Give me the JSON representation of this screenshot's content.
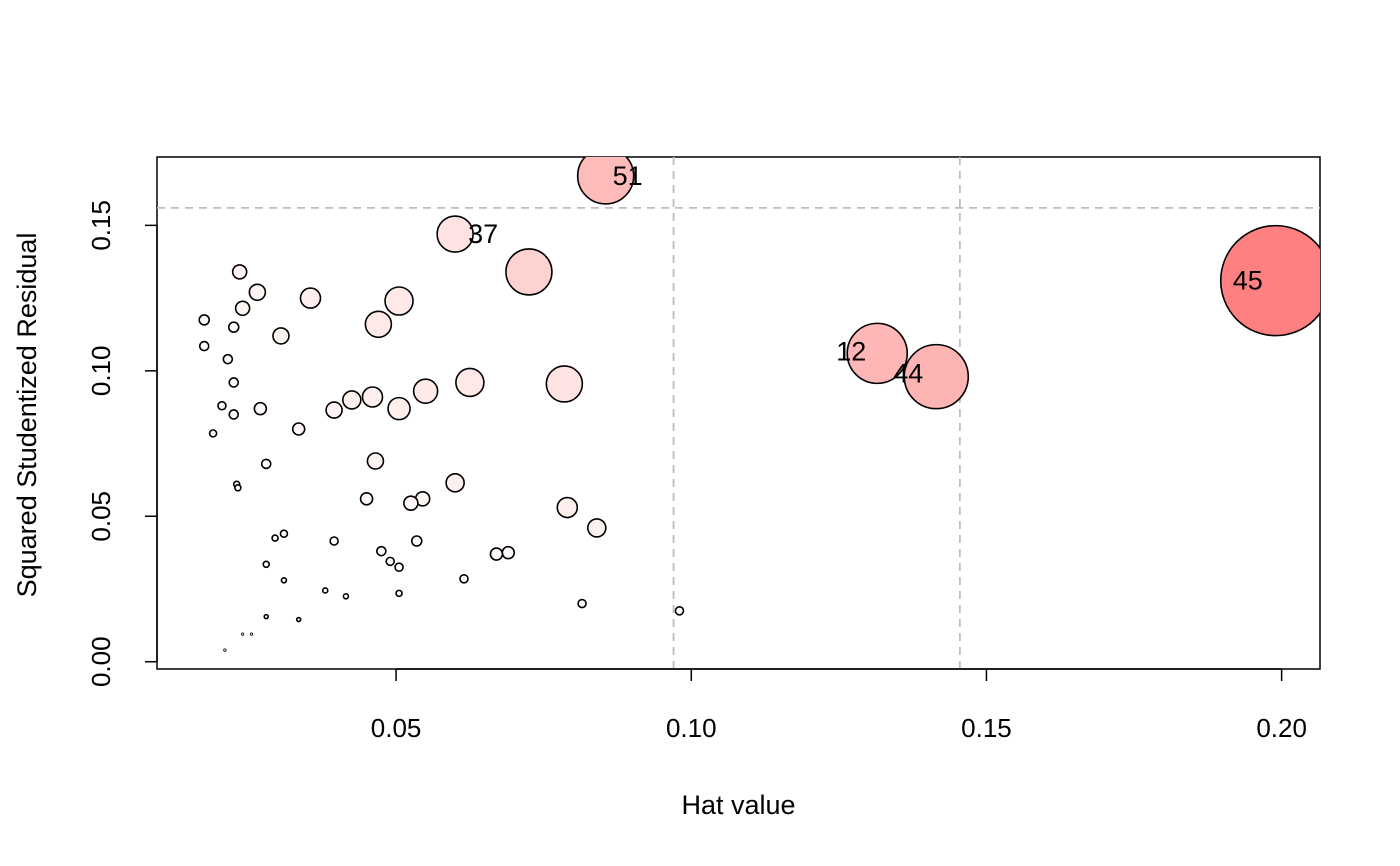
{
  "chart_data": {
    "type": "scatter",
    "title": "",
    "xlabel": "Hat value",
    "ylabel": "Squared Studentized Residual",
    "xlim": [
      0.0095,
      0.2065
    ],
    "ylim": [
      -0.0025,
      0.1735
    ],
    "x_ticks": [
      0.05,
      0.1,
      0.15,
      0.2
    ],
    "x_tick_labels": [
      "0.05",
      "0.10",
      "0.15",
      "0.20"
    ],
    "y_ticks": [
      0.0,
      0.05,
      0.1,
      0.15
    ],
    "y_tick_labels": [
      "0.00",
      "0.05",
      "0.10",
      "0.15"
    ],
    "reference_lines": {
      "x": [
        0.097,
        0.1455
      ],
      "y": 0.156
    },
    "grid": false,
    "legend": "none",
    "point_stroke": "#000000",
    "size_encoding": "bubble area proportional to influence; fill from white to #FF8080",
    "points": [
      {
        "x": 0.0855,
        "y": 0.167,
        "r": 28,
        "fill": "#FFBABA",
        "label": "51"
      },
      {
        "x": 0.06,
        "y": 0.147,
        "r": 18,
        "fill": "#FFE2E2",
        "label": "37"
      },
      {
        "x": 0.199,
        "y": 0.131,
        "r": 55,
        "fill": "#FF8080",
        "label": "45"
      },
      {
        "x": 0.1315,
        "y": 0.106,
        "r": 30,
        "fill": "#FFB6B6",
        "label": "12"
      },
      {
        "x": 0.1415,
        "y": 0.098,
        "r": 32,
        "fill": "#FFB4B4",
        "label": "44"
      },
      {
        "x": 0.0725,
        "y": 0.134,
        "r": 23,
        "fill": "#FFD2D2"
      },
      {
        "x": 0.0785,
        "y": 0.0955,
        "r": 18,
        "fill": "#FFE2E2"
      },
      {
        "x": 0.0625,
        "y": 0.096,
        "r": 14,
        "fill": "#FFE8E8"
      },
      {
        "x": 0.0505,
        "y": 0.124,
        "r": 14,
        "fill": "#FFE8E8"
      },
      {
        "x": 0.047,
        "y": 0.116,
        "r": 13,
        "fill": "#FFE8E8"
      },
      {
        "x": 0.0355,
        "y": 0.125,
        "r": 10,
        "fill": "#FFEEEE"
      },
      {
        "x": 0.055,
        "y": 0.093,
        "r": 12,
        "fill": "#FFEAEA"
      },
      {
        "x": 0.0505,
        "y": 0.087,
        "r": 11,
        "fill": "#FFEEEE"
      },
      {
        "x": 0.046,
        "y": 0.091,
        "r": 10,
        "fill": "#FFEEEE"
      },
      {
        "x": 0.0425,
        "y": 0.09,
        "r": 9,
        "fill": "#FFF0F0"
      },
      {
        "x": 0.0395,
        "y": 0.0865,
        "r": 8,
        "fill": "#FFF2F2"
      },
      {
        "x": 0.06,
        "y": 0.0615,
        "r": 9,
        "fill": "#FFF0F0"
      },
      {
        "x": 0.079,
        "y": 0.053,
        "r": 10,
        "fill": "#FFEEEE"
      },
      {
        "x": 0.084,
        "y": 0.046,
        "r": 9,
        "fill": "#FFF0F0"
      },
      {
        "x": 0.0465,
        "y": 0.069,
        "r": 8,
        "fill": "#FFF2F2"
      },
      {
        "x": 0.0235,
        "y": 0.134,
        "r": 7,
        "fill": "#FFF4F4"
      },
      {
        "x": 0.0265,
        "y": 0.127,
        "r": 8,
        "fill": "#FFF4F4"
      },
      {
        "x": 0.024,
        "y": 0.1215,
        "r": 7,
        "fill": "#FFF4F4"
      },
      {
        "x": 0.0305,
        "y": 0.112,
        "r": 8,
        "fill": "#FFF4F4"
      },
      {
        "x": 0.0545,
        "y": 0.056,
        "r": 7,
        "fill": "#FFF6F6"
      },
      {
        "x": 0.0525,
        "y": 0.0545,
        "r": 7,
        "fill": "#FFF6F6"
      },
      {
        "x": 0.045,
        "y": 0.056,
        "r": 6,
        "fill": "#FFF8F8"
      },
      {
        "x": 0.0335,
        "y": 0.08,
        "r": 6,
        "fill": "#FFF8F8"
      },
      {
        "x": 0.027,
        "y": 0.087,
        "r": 6,
        "fill": "#FFF8F8"
      },
      {
        "x": 0.069,
        "y": 0.0375,
        "r": 6,
        "fill": "#FFF8F8"
      },
      {
        "x": 0.067,
        "y": 0.037,
        "r": 6,
        "fill": "#FFF8F8"
      },
      {
        "x": 0.0175,
        "y": 0.1175,
        "r": 5,
        "fill": "#FFFAFA"
      },
      {
        "x": 0.0225,
        "y": 0.115,
        "r": 5,
        "fill": "#FFFAFA"
      },
      {
        "x": 0.0175,
        "y": 0.1085,
        "r": 4.5,
        "fill": "#FFFAFA"
      },
      {
        "x": 0.0215,
        "y": 0.104,
        "r": 4.5,
        "fill": "#FFFAFA"
      },
      {
        "x": 0.0225,
        "y": 0.096,
        "r": 4.5,
        "fill": "#FFFAFA"
      },
      {
        "x": 0.0205,
        "y": 0.088,
        "r": 4,
        "fill": "#FFFCFC"
      },
      {
        "x": 0.0225,
        "y": 0.085,
        "r": 4.5,
        "fill": "#FFFAFA"
      },
      {
        "x": 0.019,
        "y": 0.0785,
        "r": 3.5,
        "fill": "#FFFCFC"
      },
      {
        "x": 0.028,
        "y": 0.068,
        "r": 4.5,
        "fill": "#FFFAFA"
      },
      {
        "x": 0.023,
        "y": 0.061,
        "r": 3,
        "fill": "#FFFCFC"
      },
      {
        "x": 0.0232,
        "y": 0.0598,
        "r": 3,
        "fill": "#FFFCFC"
      },
      {
        "x": 0.0535,
        "y": 0.0415,
        "r": 5,
        "fill": "#FFFAFA"
      },
      {
        "x": 0.0395,
        "y": 0.0415,
        "r": 4,
        "fill": "#FFFCFC"
      },
      {
        "x": 0.0475,
        "y": 0.038,
        "r": 4.5,
        "fill": "#FFFAFA"
      },
      {
        "x": 0.049,
        "y": 0.0345,
        "r": 4,
        "fill": "#FFFCFC"
      },
      {
        "x": 0.0505,
        "y": 0.0325,
        "r": 4,
        "fill": "#FFFCFC"
      },
      {
        "x": 0.031,
        "y": 0.044,
        "r": 3.5,
        "fill": "#FFFCFC"
      },
      {
        "x": 0.0295,
        "y": 0.0425,
        "r": 3,
        "fill": "#FFFCFC"
      },
      {
        "x": 0.028,
        "y": 0.0335,
        "r": 3,
        "fill": "#FFFCFC"
      },
      {
        "x": 0.0615,
        "y": 0.0285,
        "r": 4,
        "fill": "#FFFCFC"
      },
      {
        "x": 0.031,
        "y": 0.028,
        "r": 2.5,
        "fill": "#FFFEFE"
      },
      {
        "x": 0.038,
        "y": 0.0245,
        "r": 2.5,
        "fill": "#FFFEFE"
      },
      {
        "x": 0.0415,
        "y": 0.0225,
        "r": 2.5,
        "fill": "#FFFEFE"
      },
      {
        "x": 0.0505,
        "y": 0.0235,
        "r": 3,
        "fill": "#FFFCFC"
      },
      {
        "x": 0.0815,
        "y": 0.02,
        "r": 4,
        "fill": "#FFFCFC"
      },
      {
        "x": 0.098,
        "y": 0.0175,
        "r": 4,
        "fill": "#FFFCFC"
      },
      {
        "x": 0.028,
        "y": 0.0155,
        "r": 2,
        "fill": "#FFFEFE"
      },
      {
        "x": 0.0335,
        "y": 0.0145,
        "r": 2,
        "fill": "#FFFEFE"
      },
      {
        "x": 0.024,
        "y": 0.0095,
        "r": 1.2,
        "fill": "#FFFFFF"
      },
      {
        "x": 0.0255,
        "y": 0.0095,
        "r": 1.2,
        "fill": "#FFFFFF"
      },
      {
        "x": 0.021,
        "y": 0.004,
        "r": 1.2,
        "fill": "#FFFFFF"
      }
    ]
  }
}
